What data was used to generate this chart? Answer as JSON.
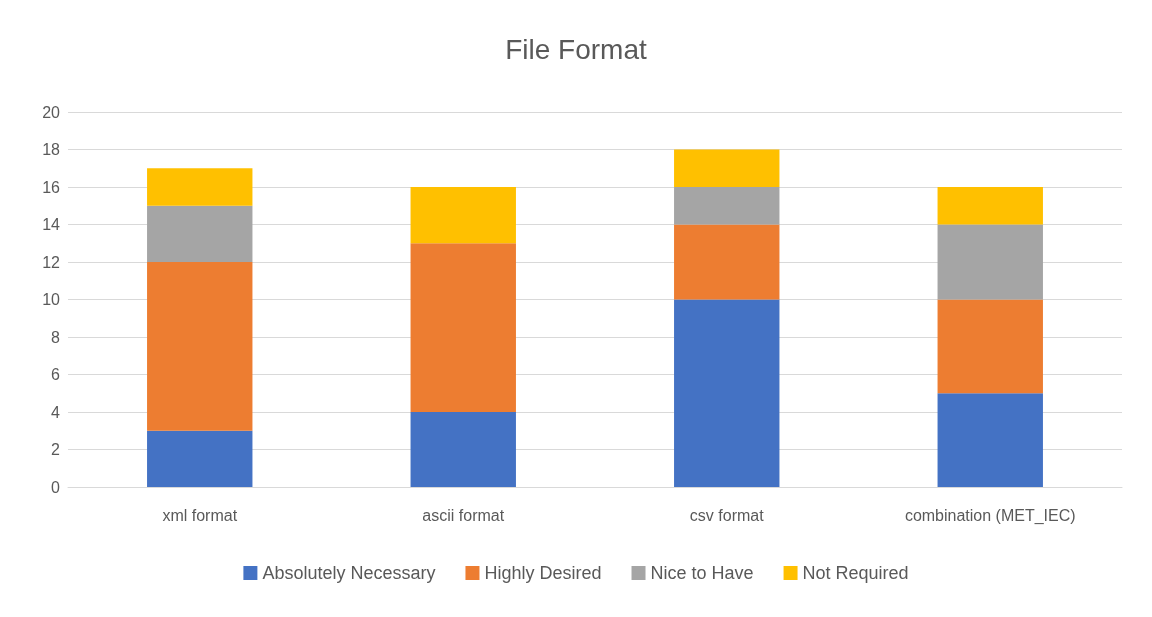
{
  "chart_data": {
    "type": "bar",
    "title": "File Format",
    "stacked": true,
    "categories": [
      "xml format",
      "ascii format",
      "csv format",
      "combination (MET_IEC)"
    ],
    "series": [
      {
        "name": "Absolutely Necessary",
        "color": "#4472c4",
        "values": [
          3,
          4,
          10,
          5
        ]
      },
      {
        "name": "Highly Desired",
        "color": "#ed7d31",
        "values": [
          9,
          9,
          4,
          5
        ]
      },
      {
        "name": "Nice to Have",
        "color": "#a5a5a5",
        "values": [
          3,
          0,
          2,
          4
        ]
      },
      {
        "name": "Not Required",
        "color": "#ffc000",
        "values": [
          2,
          3,
          2,
          2
        ]
      }
    ],
    "ylim": [
      0,
      20
    ],
    "yticks": [
      0,
      2,
      4,
      6,
      8,
      10,
      12,
      14,
      16,
      18,
      20
    ],
    "grid": "y",
    "legend": "bottom"
  }
}
